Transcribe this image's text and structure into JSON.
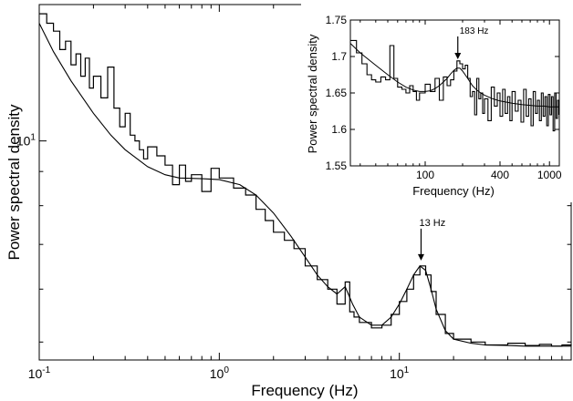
{
  "chart_data": [
    {
      "type": "line",
      "xlabel": "Frequency (Hz)",
      "ylabel": "Power spectral density",
      "x_scale": "log",
      "y_scale": "log",
      "xlim": [
        0.1,
        90
      ],
      "ylim": [
        4.7,
        16
      ],
      "x_ticks": [
        {
          "value": 0.1,
          "base": "10",
          "exp": "-1"
        },
        {
          "value": 1,
          "base": "10",
          "exp": "0"
        },
        {
          "value": 10,
          "base": "10",
          "exp": "1"
        }
      ],
      "y_ticks": [
        {
          "value": 10,
          "base": "10",
          "exp": "1"
        }
      ],
      "annotation": {
        "text": "13 Hz",
        "x": 13.2,
        "y": 6.6
      },
      "series": [
        {
          "style": "step",
          "x": [
            0.1,
            0.11,
            0.12,
            0.13,
            0.14,
            0.15,
            0.16,
            0.17,
            0.18,
            0.19,
            0.2,
            0.22,
            0.24,
            0.26,
            0.28,
            0.3,
            0.32,
            0.34,
            0.36,
            0.38,
            0.4,
            0.45,
            0.5,
            0.55,
            0.6,
            0.65,
            0.7,
            0.8,
            0.9,
            1.0,
            1.2,
            1.4,
            1.6,
            1.8,
            2.0,
            2.3,
            2.6,
            3.0,
            3.5,
            4.0,
            4.5,
            5.0,
            5.3,
            5.6,
            6.0,
            7.0,
            8.0,
            9.0,
            10,
            11,
            12,
            13,
            14,
            15,
            16,
            18,
            20,
            25,
            30,
            40,
            50,
            60,
            70,
            80,
            90
          ],
          "y": [
            15.5,
            15.0,
            14.6,
            13.7,
            14.1,
            13.0,
            13.5,
            12.5,
            13.3,
            12.0,
            12.5,
            11.6,
            12.9,
            11.2,
            10.5,
            11.0,
            10.2,
            10.0,
            9.7,
            9.4,
            9.8,
            9.5,
            9.2,
            8.6,
            9.2,
            8.7,
            8.9,
            8.4,
            9.1,
            8.8,
            8.5,
            8.3,
            7.9,
            7.6,
            7.3,
            7.1,
            6.9,
            6.5,
            6.2,
            6.0,
            5.7,
            6.15,
            5.55,
            5.45,
            5.35,
            5.25,
            5.3,
            5.5,
            5.75,
            6.0,
            6.3,
            6.5,
            6.3,
            5.95,
            5.5,
            5.15,
            5.05,
            5.0,
            4.95,
            4.98,
            4.94,
            4.96,
            4.93,
            4.95,
            4.94
          ]
        },
        {
          "style": "line",
          "x": [
            0.1,
            0.12,
            0.15,
            0.2,
            0.25,
            0.3,
            0.4,
            0.5,
            0.6,
            0.8,
            1.0,
            1.3,
            1.6,
            2.0,
            2.5,
            3.0,
            3.5,
            4.0,
            4.5,
            5.0,
            5.5,
            6.0,
            7.0,
            8.0,
            9.0,
            10,
            11,
            12,
            13,
            14,
            15,
            16,
            18,
            20,
            25,
            30,
            40,
            50,
            60,
            70,
            80,
            90
          ],
          "y": [
            15.0,
            13.6,
            12.3,
            11.0,
            10.2,
            9.7,
            9.15,
            8.9,
            8.8,
            8.78,
            8.75,
            8.6,
            8.3,
            7.8,
            7.2,
            6.7,
            6.3,
            6.05,
            5.9,
            6.05,
            5.7,
            5.45,
            5.3,
            5.3,
            5.45,
            5.7,
            6.0,
            6.3,
            6.5,
            6.4,
            6.0,
            5.6,
            5.2,
            5.05,
            4.98,
            4.95,
            4.94,
            4.93,
            4.93,
            4.93,
            4.93,
            4.93
          ]
        }
      ]
    },
    {
      "type": "line",
      "xlabel": "Frequency (Hz)",
      "ylabel": "Power spectral density",
      "x_scale": "log",
      "y_scale": "linear",
      "xlim": [
        25,
        1200
      ],
      "ylim": [
        1.55,
        1.75
      ],
      "x_ticks": [
        {
          "value": 100,
          "label": "100"
        },
        {
          "value": 400,
          "label": "400"
        },
        {
          "value": 1000,
          "label": "1000"
        }
      ],
      "y_ticks": [
        {
          "value": 1.55,
          "label": "1.55"
        },
        {
          "value": 1.6,
          "label": "1.6"
        },
        {
          "value": 1.65,
          "label": "1.65"
        },
        {
          "value": 1.7,
          "label": "1.7"
        },
        {
          "value": 1.75,
          "label": "1.75"
        }
      ],
      "annotation": {
        "text": "183 Hz",
        "x": 183,
        "y": 1.695
      },
      "series": [
        {
          "style": "step",
          "x": [
            25,
            28,
            31,
            34,
            37,
            40,
            44,
            48,
            52,
            56,
            60,
            65,
            70,
            75,
            80,
            85,
            90,
            100,
            110,
            120,
            130,
            140,
            150,
            160,
            170,
            180,
            190,
            200,
            210,
            220,
            230,
            240,
            250,
            260,
            270,
            280,
            290,
            300,
            320,
            340,
            360,
            380,
            400,
            420,
            440,
            460,
            480,
            500,
            530,
            560,
            590,
            620,
            650,
            680,
            710,
            740,
            770,
            800,
            830,
            860,
            890,
            920,
            950,
            980,
            1010,
            1040,
            1070,
            1100,
            1130,
            1160,
            1190
          ],
          "y": [
            1.722,
            1.705,
            1.69,
            1.675,
            1.668,
            1.665,
            1.672,
            1.668,
            1.715,
            1.67,
            1.658,
            1.655,
            1.65,
            1.66,
            1.652,
            1.64,
            1.65,
            1.662,
            1.652,
            1.67,
            1.64,
            1.672,
            1.66,
            1.668,
            1.68,
            1.694,
            1.69,
            1.683,
            1.688,
            1.67,
            1.645,
            1.652,
            1.62,
            1.67,
            1.642,
            1.65,
            1.622,
            1.642,
            1.612,
            1.658,
            1.632,
            1.65,
            1.618,
            1.655,
            1.622,
            1.645,
            1.612,
            1.652,
            1.625,
            1.64,
            1.61,
            1.655,
            1.618,
            1.642,
            1.605,
            1.652,
            1.622,
            1.64,
            1.612,
            1.65,
            1.618,
            1.645,
            1.605,
            1.648,
            1.62,
            1.645,
            1.598,
            1.65,
            1.615,
            1.64,
            1.62
          ]
        },
        {
          "style": "line",
          "x": [
            25,
            30,
            40,
            50,
            60,
            70,
            80,
            90,
            100,
            110,
            120,
            130,
            140,
            150,
            160,
            170,
            180,
            190,
            200,
            220,
            240,
            260,
            280,
            300,
            350,
            400,
            500,
            600,
            700,
            800,
            900,
            1000,
            1100,
            1200
          ],
          "y": [
            1.718,
            1.705,
            1.688,
            1.675,
            1.665,
            1.658,
            1.654,
            1.652,
            1.652,
            1.653,
            1.656,
            1.66,
            1.665,
            1.67,
            1.676,
            1.681,
            1.684,
            1.684,
            1.68,
            1.67,
            1.66,
            1.654,
            1.65,
            1.647,
            1.642,
            1.639,
            1.636,
            1.634,
            1.633,
            1.632,
            1.632,
            1.631,
            1.631,
            1.631
          ]
        }
      ]
    }
  ]
}
